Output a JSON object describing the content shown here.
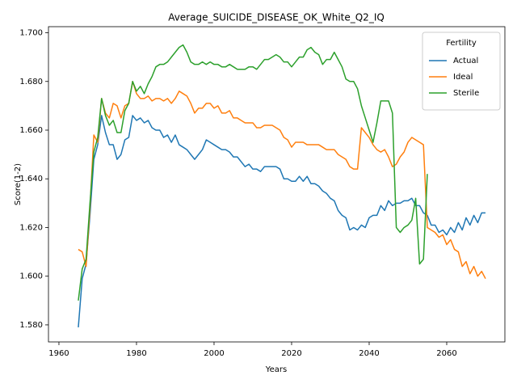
{
  "chart_data": {
    "type": "line",
    "title": "Average_SUICIDE_DISEASE_OK_White_Q2_IQ",
    "xlabel": "Years",
    "ylabel": "Score(1-2)",
    "legend_title": "Fertility",
    "legend": "upper right",
    "x": [
      1965,
      1966,
      1967,
      1968,
      1969,
      1970,
      1971,
      1972,
      1973,
      1974,
      1975,
      1976,
      1977,
      1978,
      1979,
      1980,
      1981,
      1982,
      1983,
      1984,
      1985,
      1986,
      1987,
      1988,
      1989,
      1990,
      1991,
      1992,
      1993,
      1994,
      1995,
      1996,
      1997,
      1998,
      1999,
      2000,
      2001,
      2002,
      2003,
      2004,
      2005,
      2006,
      2007,
      2008,
      2009,
      2010,
      2011,
      2012,
      2013,
      2014,
      2015,
      2016,
      2017,
      2018,
      2019,
      2020,
      2021,
      2022,
      2023,
      2024,
      2025,
      2026,
      2027,
      2028,
      2029,
      2030,
      2031,
      2032,
      2033,
      2034,
      2035,
      2036,
      2037,
      2038,
      2039,
      2040,
      2041,
      2042,
      2043,
      2044,
      2045,
      2046,
      2047,
      2048,
      2049,
      2050,
      2051,
      2052,
      2053,
      2054,
      2055,
      2056,
      2057,
      2058,
      2059,
      2060,
      2061,
      2062,
      2063,
      2064,
      2065,
      2066,
      2067,
      2068,
      2069,
      2070
    ],
    "series": [
      {
        "name": "Actual",
        "color": "#1f77b4",
        "values": [
          1.579,
          1.599,
          1.605,
          1.625,
          1.648,
          1.654,
          1.666,
          1.659,
          1.654,
          1.654,
          1.648,
          1.65,
          1.656,
          1.657,
          1.666,
          1.664,
          1.665,
          1.663,
          1.664,
          1.661,
          1.66,
          1.66,
          1.657,
          1.658,
          1.655,
          1.658,
          1.654,
          1.653,
          1.652,
          1.65,
          1.648,
          1.65,
          1.652,
          1.656,
          1.655,
          1.654,
          1.653,
          1.652,
          1.652,
          1.651,
          1.649,
          1.649,
          1.647,
          1.645,
          1.646,
          1.644,
          1.644,
          1.643,
          1.645,
          1.645,
          1.645,
          1.645,
          1.644,
          1.64,
          1.64,
          1.639,
          1.639,
          1.641,
          1.639,
          1.641,
          1.638,
          1.638,
          1.637,
          1.635,
          1.634,
          1.632,
          1.631,
          1.627,
          1.625,
          1.624,
          1.619,
          1.62,
          1.619,
          1.621,
          1.62,
          1.624,
          1.625,
          1.625,
          1.629,
          1.627,
          1.631,
          1.629,
          1.63,
          1.63,
          1.631,
          1.631,
          1.632,
          1.629,
          1.629,
          1.626,
          1.625,
          1.621,
          1.621,
          1.618,
          1.619,
          1.617,
          1.62,
          1.618,
          1.622,
          1.619,
          1.624,
          1.621,
          1.625,
          1.622,
          1.626,
          1.626
        ]
      },
      {
        "name": "Ideal",
        "color": "#ff7f0e",
        "values": [
          1.611,
          1.61,
          1.604,
          1.628,
          1.658,
          1.655,
          1.673,
          1.667,
          1.665,
          1.671,
          1.67,
          1.665,
          1.67,
          1.671,
          1.68,
          1.675,
          1.673,
          1.673,
          1.674,
          1.672,
          1.673,
          1.673,
          1.672,
          1.673,
          1.671,
          1.673,
          1.676,
          1.675,
          1.674,
          1.671,
          1.667,
          1.669,
          1.669,
          1.671,
          1.671,
          1.669,
          1.67,
          1.667,
          1.667,
          1.668,
          1.665,
          1.665,
          1.664,
          1.663,
          1.663,
          1.663,
          1.661,
          1.661,
          1.662,
          1.662,
          1.662,
          1.661,
          1.66,
          1.657,
          1.656,
          1.653,
          1.655,
          1.655,
          1.655,
          1.654,
          1.654,
          1.654,
          1.654,
          1.653,
          1.652,
          1.652,
          1.652,
          1.65,
          1.649,
          1.648,
          1.645,
          1.644,
          1.644,
          1.661,
          1.659,
          1.657,
          1.654,
          1.652,
          1.651,
          1.652,
          1.649,
          1.645,
          1.646,
          1.649,
          1.651,
          1.655,
          1.657,
          1.656,
          1.655,
          1.654,
          1.62,
          1.619,
          1.618,
          1.616,
          1.617,
          1.613,
          1.615,
          1.611,
          1.61,
          1.604,
          1.606,
          1.601,
          1.604,
          1.6,
          1.602,
          1.599
        ]
      },
      {
        "name": "Sterile",
        "color": "#2ca02c",
        "values": [
          1.59,
          1.603,
          1.607,
          1.63,
          1.651,
          1.657,
          1.673,
          1.666,
          1.662,
          1.664,
          1.659,
          1.659,
          1.668,
          1.671,
          1.68,
          1.676,
          1.678,
          1.675,
          1.679,
          1.682,
          1.686,
          1.687,
          1.687,
          1.688,
          1.69,
          1.692,
          1.694,
          1.695,
          1.692,
          1.688,
          1.687,
          1.687,
          1.688,
          1.687,
          1.688,
          1.687,
          1.687,
          1.686,
          1.686,
          1.687,
          1.686,
          1.685,
          1.685,
          1.685,
          1.686,
          1.686,
          1.685,
          1.687,
          1.689,
          1.689,
          1.69,
          1.691,
          1.69,
          1.688,
          1.688,
          1.686,
          1.688,
          1.69,
          1.69,
          1.693,
          1.694,
          1.692,
          1.691,
          1.687,
          1.689,
          1.689,
          1.692,
          1.689,
          1.686,
          1.681,
          1.68,
          1.68,
          1.677,
          1.67,
          1.665,
          1.66,
          1.655,
          1.663,
          1.672,
          1.672,
          1.672,
          1.667,
          1.62,
          1.618,
          1.62,
          1.621,
          1.623,
          1.632,
          1.605,
          1.607,
          1.642,
          null,
          null,
          null,
          null,
          null,
          null,
          null,
          null,
          null,
          null,
          null,
          null,
          null,
          null,
          null
        ]
      }
    ],
    "xlim": [
      1957.3,
      2075
    ],
    "xticks": [
      1960,
      1980,
      2000,
      2020,
      2040,
      2060
    ],
    "ylim": [
      1.573,
      1.7025
    ],
    "yticks": [
      {
        "value": 1.58,
        "label": "1.580"
      },
      {
        "value": 1.6,
        "label": "1.600"
      },
      {
        "value": 1.62,
        "label": "1.620"
      },
      {
        "value": 1.64,
        "label": "1.640"
      },
      {
        "value": 1.66,
        "label": "1.660"
      },
      {
        "value": 1.68,
        "label": "1.680"
      },
      {
        "value": 1.7,
        "label": "1.700"
      }
    ],
    "grid": false
  }
}
